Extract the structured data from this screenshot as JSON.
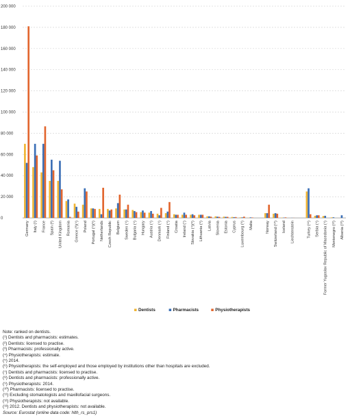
{
  "chart_data": {
    "type": "bar",
    "title": "",
    "xlabel": "",
    "ylabel": "",
    "ylim": [
      0,
      200000
    ],
    "yticks": [
      0,
      20000,
      40000,
      60000,
      80000,
      100000,
      120000,
      140000,
      160000,
      180000,
      200000
    ],
    "ytick_labels": [
      "0",
      "20 000",
      "40 000",
      "60 000",
      "80 000",
      "100 000",
      "120 000",
      "140 000",
      "160 000",
      "180 000",
      "200 000"
    ],
    "grid": true,
    "legend_position": "bottom",
    "categories": [
      "Germany",
      "Italy (¹)",
      "France",
      "Spain (²)",
      "United Kingdom",
      "Romania",
      "Greece (³)(⁴)",
      "Poland",
      "Portugal (⁵)(⁶)",
      "Netherlands",
      "Czech Republic",
      "Belgium",
      "Sweden (⁴)",
      "Bulgaria (⁴)",
      "Hungary",
      "Austria (⁴)",
      "Denmark (⁴)",
      "Finland (⁴)",
      "Croatia",
      "Ireland (⁷)",
      "Slovakia (⁴)(⁸)",
      "Lithuania (⁹)",
      "Latvia",
      "Slovenia",
      "Estonia",
      "Cyprus",
      "Luxembourg (⁹)",
      "Malta",
      "",
      "Norway",
      "Switzerland (¹⁰)",
      "Iceland",
      "Liechtenstein",
      "",
      "Turkey (¹¹)",
      "Serbia (⁴)",
      "Former Yugoslav Republic of Macedonia (⁴)",
      "Montenegro (¹²)",
      "Albania (¹³)"
    ],
    "series": [
      {
        "name": "Dentists",
        "color": "#f0b433",
        "values": [
          70000,
          48000,
          43000,
          35000,
          35000,
          16000,
          13500,
          12500,
          9000,
          8500,
          8500,
          9000,
          8000,
          7500,
          5500,
          5000,
          4000,
          4500,
          3500,
          3000,
          3000,
          3000,
          1500,
          1500,
          1200,
          900,
          500,
          200,
          null,
          4500,
          4000,
          300,
          null,
          null,
          25000,
          2000,
          1800,
          500,
          0
        ]
      },
      {
        "name": "Pharmacists",
        "color": "#3b6fb6",
        "values": [
          52000,
          70000,
          70000,
          55000,
          54000,
          17500,
          10500,
          28000,
          9000,
          3500,
          7000,
          14000,
          8000,
          6500,
          7000,
          6500,
          2500,
          6000,
          3000,
          5000,
          3500,
          3000,
          1500,
          1200,
          1000,
          700,
          500,
          500,
          null,
          4500,
          4500,
          300,
          100,
          null,
          28000,
          2500,
          2000,
          600,
          2500
        ]
      },
      {
        "name": "Physiotherapists",
        "color": "#e2662e",
        "values": [
          181000,
          59000,
          86500,
          45000,
          27000,
          1000,
          6000,
          25000,
          8500,
          28500,
          8000,
          22000,
          12500,
          5500,
          5000,
          4000,
          9500,
          15000,
          3000,
          3000,
          2500,
          3000,
          1200,
          1000,
          1000,
          800,
          1200,
          400,
          null,
          12500,
          4000,
          500,
          100,
          null,
          3500,
          2500,
          null,
          null,
          null
        ]
      }
    ]
  },
  "legend": {
    "items": [
      {
        "label": "Dentists",
        "color": "#f0b433"
      },
      {
        "label": "Pharmacists",
        "color": "#3b6fb6"
      },
      {
        "label": "Physiotherapists",
        "color": "#e2662e"
      }
    ]
  },
  "notes": [
    "Note: ranked on dentists.",
    "(¹) Dentists and pharmacists: estimates.",
    "(²) Dentists: licensed to practise.",
    "(³) Pharmacists: professionally active.",
    "(⁴) Physiotherapists: estimate.",
    "(⁵) 2014.",
    "(⁶) Physiotherapists: the self-employed and those employed by institutions other than hospitals are excluded.",
    "(⁷) Dentists and pharmacists: licensed to practise.",
    "(⁸) Dentists and pharmacists: professionally active.",
    "(⁹) Physiotherapists: 2014.",
    "(¹⁰) Pharmacists: licensed to practise.",
    "(¹¹) Excluding stomatologists and maxillofacial surgeons.",
    "(¹²) Physiotherapists: not available.",
    "(¹³) 2012. Dentists and physiotherapists: not available."
  ],
  "source": "Source: Eurostat (online data code: hlth_rs_prs1)"
}
